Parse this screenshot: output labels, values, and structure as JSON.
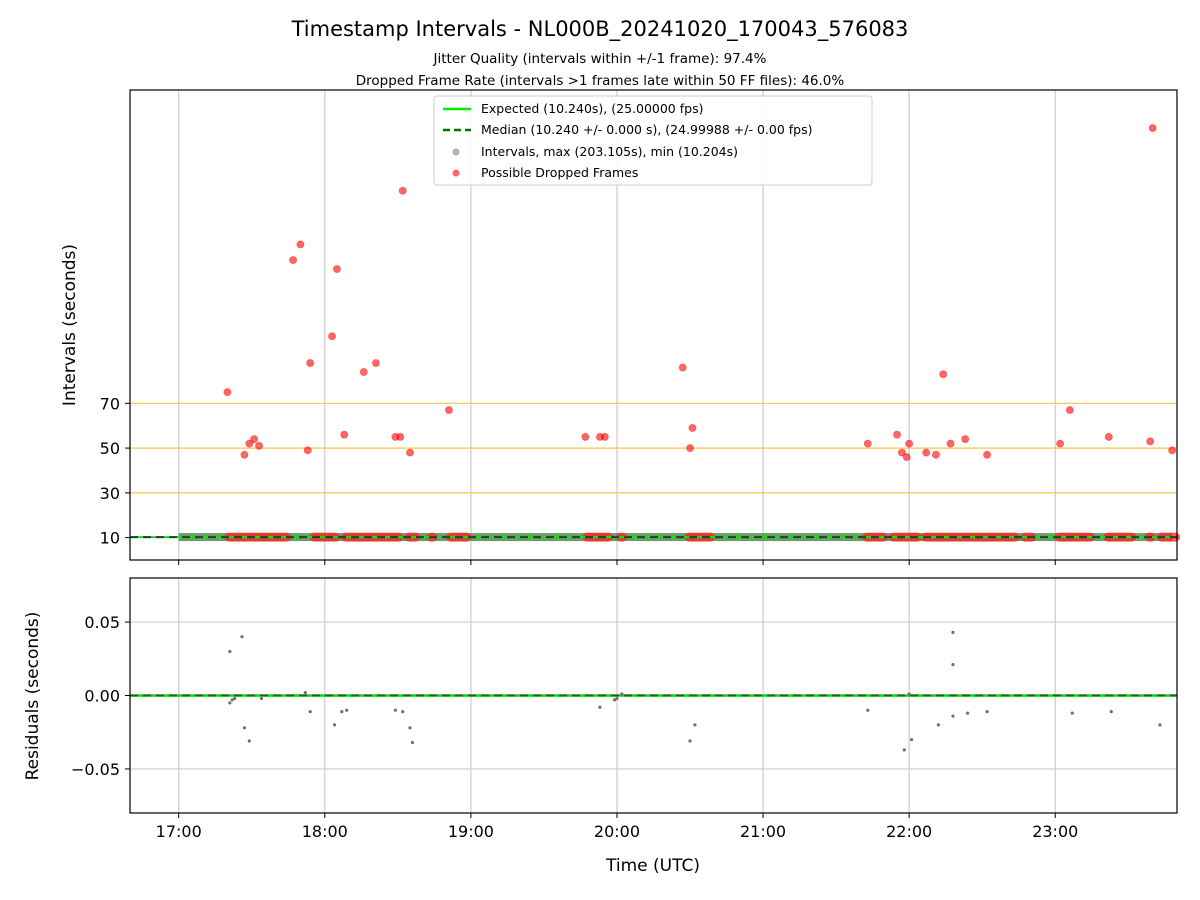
{
  "chart_data": [
    {
      "type": "scatter",
      "title": "Timestamp Intervals - NL000B_20241020_170043_576083",
      "subtitle_lines": [
        "Jitter Quality (intervals within +/-1 frame): 97.4%",
        "Dropped Frame Rate (intervals >1 frames late within 50 FF files): 46.0%"
      ],
      "xlabel": "",
      "ylabel": "Intervals (seconds)",
      "xlim": [
        "16:40",
        "23:50"
      ],
      "ylim": [
        0,
        210
      ],
      "y_ticks": [
        "10",
        "30",
        "50",
        "70"
      ],
      "x_ticks": [
        "17:00",
        "18:00",
        "19:00",
        "20:00",
        "21:00",
        "22:00",
        "23:00"
      ],
      "threshold_lines": [
        30,
        50,
        70
      ],
      "grid": "vertical",
      "legend_position": "top-center",
      "legend": [
        "Expected (10.240s), (25.00000 fps)",
        "Median (10.240 +/- 0.000 s), (24.99988 +/- 0.00 fps)",
        "Intervals, max (203.105s), min (10.204s)",
        "Possible Dropped Frames"
      ],
      "series": [
        {
          "name": "Expected (10.240s), (25.00000 fps)",
          "kind": "line",
          "y": 10.24,
          "color": "#00ee00"
        },
        {
          "name": "Median (10.240 +/- 0.000 s), (24.99988 +/- 0.00 fps)",
          "kind": "dashed-line",
          "y": 10.24,
          "color": "#007700"
        },
        {
          "name": "Intervals, max (203.105s), min (10.204s)",
          "kind": "scatter",
          "color": "#808080",
          "band": {
            "x_start": "17:00",
            "x_end": "23:48",
            "y": 10.24
          }
        },
        {
          "name": "Possible Dropped Frames",
          "kind": "scatter",
          "color": "#ff0000",
          "points": [
            {
              "x": "17:20",
              "y": 75
            },
            {
              "x": "17:27",
              "y": 47
            },
            {
              "x": "17:29",
              "y": 52
            },
            {
              "x": "17:31",
              "y": 54
            },
            {
              "x": "17:33",
              "y": 51
            },
            {
              "x": "17:47",
              "y": 134
            },
            {
              "x": "17:50",
              "y": 141
            },
            {
              "x": "17:53",
              "y": 49
            },
            {
              "x": "17:54",
              "y": 88
            },
            {
              "x": "18:03",
              "y": 100
            },
            {
              "x": "18:05",
              "y": 130
            },
            {
              "x": "18:08",
              "y": 56
            },
            {
              "x": "18:16",
              "y": 84
            },
            {
              "x": "18:21",
              "y": 88
            },
            {
              "x": "18:29",
              "y": 55
            },
            {
              "x": "18:31",
              "y": 55
            },
            {
              "x": "18:32",
              "y": 165
            },
            {
              "x": "18:35",
              "y": 48
            },
            {
              "x": "18:51",
              "y": 67
            },
            {
              "x": "19:47",
              "y": 55
            },
            {
              "x": "19:53",
              "y": 55
            },
            {
              "x": "19:55",
              "y": 55
            },
            {
              "x": "20:27",
              "y": 86
            },
            {
              "x": "20:30",
              "y": 50
            },
            {
              "x": "20:31",
              "y": 59
            },
            {
              "x": "21:43",
              "y": 52
            },
            {
              "x": "21:55",
              "y": 56
            },
            {
              "x": "21:57",
              "y": 48
            },
            {
              "x": "21:59",
              "y": 46
            },
            {
              "x": "22:00",
              "y": 52
            },
            {
              "x": "22:07",
              "y": 48
            },
            {
              "x": "22:11",
              "y": 47
            },
            {
              "x": "22:14",
              "y": 83
            },
            {
              "x": "22:17",
              "y": 52
            },
            {
              "x": "22:23",
              "y": 54
            },
            {
              "x": "22:32",
              "y": 47
            },
            {
              "x": "23:02",
              "y": 52
            },
            {
              "x": "23:06",
              "y": 67
            },
            {
              "x": "23:22",
              "y": 55
            },
            {
              "x": "23:39",
              "y": 53
            },
            {
              "x": "23:40",
              "y": 193
            },
            {
              "x": "23:48",
              "y": 49
            }
          ],
          "baseline_clusters": [
            {
              "from": "17:20",
              "to": "17:45"
            },
            {
              "from": "17:55",
              "to": "18:05"
            },
            {
              "from": "18:08",
              "to": "18:31"
            },
            {
              "from": "18:34",
              "to": "18:38"
            },
            {
              "from": "18:43",
              "to": "18:45"
            },
            {
              "from": "18:51",
              "to": "18:59"
            },
            {
              "from": "19:47",
              "to": "19:57"
            },
            {
              "from": "20:01",
              "to": "20:03"
            },
            {
              "from": "20:29",
              "to": "20:39"
            },
            {
              "from": "21:42",
              "to": "21:50"
            },
            {
              "from": "21:53",
              "to": "22:04"
            },
            {
              "from": "22:06",
              "to": "22:44"
            },
            {
              "from": "22:47",
              "to": "22:51"
            },
            {
              "from": "23:01",
              "to": "23:15"
            },
            {
              "from": "23:21",
              "to": "23:32"
            },
            {
              "from": "23:38",
              "to": "23:40"
            },
            {
              "from": "23:43",
              "to": "23:50"
            }
          ]
        }
      ]
    },
    {
      "type": "scatter",
      "xlabel": "Time (UTC)",
      "ylabel": "Residuals (seconds)",
      "xlim": [
        "16:40",
        "23:50"
      ],
      "ylim": [
        -0.08,
        0.08
      ],
      "y_ticks": [
        "0.05",
        "0.00",
        "−0.05"
      ],
      "y_tick_values": [
        0.05,
        0.0,
        -0.05
      ],
      "x_ticks": [
        "17:00",
        "18:00",
        "19:00",
        "20:00",
        "21:00",
        "22:00",
        "23:00"
      ],
      "grid": "both",
      "series": [
        {
          "name": "",
          "kind": "dashed-line",
          "y": 0,
          "color": "#007700"
        },
        {
          "name": "",
          "kind": "scatter",
          "color": "#707070",
          "points": [
            {
              "x": "17:21",
              "y": 0.03
            },
            {
              "x": "17:26",
              "y": 0.04
            },
            {
              "x": "17:27",
              "y": -0.022
            },
            {
              "x": "17:29",
              "y": -0.031
            },
            {
              "x": "17:21",
              "y": -0.005
            },
            {
              "x": "17:22",
              "y": -0.003
            },
            {
              "x": "17:23",
              "y": -0.002
            },
            {
              "x": "17:34",
              "y": -0.002
            },
            {
              "x": "17:54",
              "y": -0.011
            },
            {
              "x": "18:04",
              "y": -0.02
            },
            {
              "x": "18:07",
              "y": -0.011
            },
            {
              "x": "18:09",
              "y": -0.01
            },
            {
              "x": "18:29",
              "y": -0.01
            },
            {
              "x": "18:32",
              "y": -0.011
            },
            {
              "x": "18:35",
              "y": -0.022
            },
            {
              "x": "18:36",
              "y": -0.032
            },
            {
              "x": "19:53",
              "y": -0.008
            },
            {
              "x": "19:59",
              "y": -0.003
            },
            {
              "x": "20:00",
              "y": -0.002
            },
            {
              "x": "20:30",
              "y": -0.031
            },
            {
              "x": "20:32",
              "y": -0.02
            },
            {
              "x": "21:43",
              "y": -0.01
            },
            {
              "x": "21:58",
              "y": -0.037
            },
            {
              "x": "22:01",
              "y": -0.03
            },
            {
              "x": "22:12",
              "y": -0.02
            },
            {
              "x": "22:18",
              "y": 0.043
            },
            {
              "x": "22:18",
              "y": 0.021
            },
            {
              "x": "22:18",
              "y": -0.014
            },
            {
              "x": "22:24",
              "y": -0.012
            },
            {
              "x": "22:32",
              "y": -0.011
            },
            {
              "x": "23:07",
              "y": -0.012
            },
            {
              "x": "23:23",
              "y": -0.011
            },
            {
              "x": "23:43",
              "y": -0.02
            },
            {
              "x": "17:52",
              "y": 0.002
            },
            {
              "x": "20:02",
              "y": 0.001
            },
            {
              "x": "22:00",
              "y": 0.001
            }
          ]
        }
      ]
    }
  ]
}
